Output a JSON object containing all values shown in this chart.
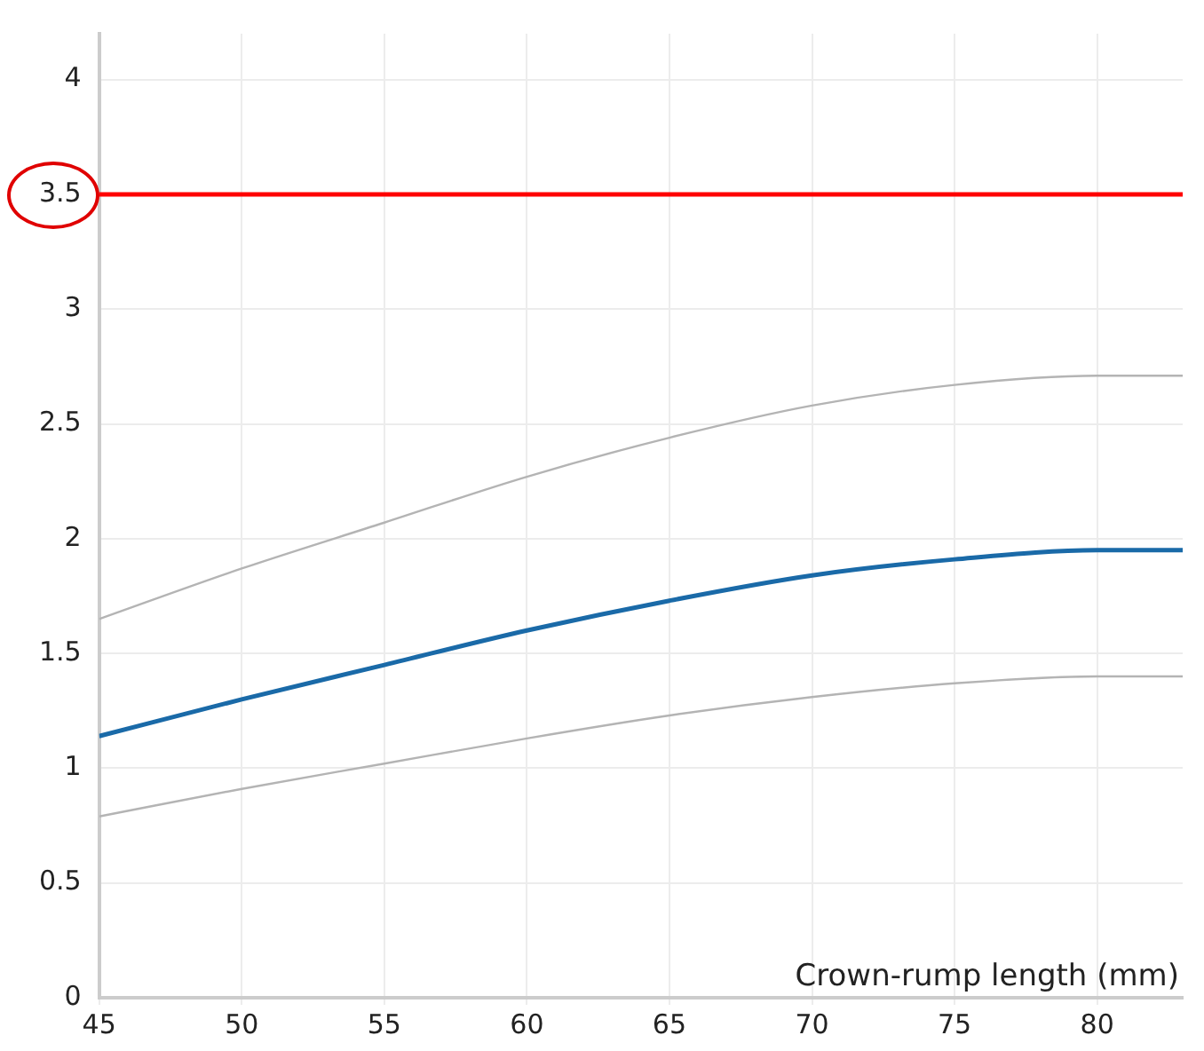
{
  "chart_data": {
    "type": "line",
    "xlabel": "Crown-rump length (mm)",
    "x": [
      45,
      50,
      55,
      60,
      65,
      70,
      75,
      80,
      83
    ],
    "series": [
      {
        "color": "#b4b4b4",
        "values": [
          1.65,
          1.87,
          2.07,
          2.27,
          2.44,
          2.58,
          2.67,
          2.71,
          2.71
        ]
      },
      {
        "color": "#1a6aa8",
        "values": [
          1.14,
          1.3,
          1.45,
          1.6,
          1.73,
          1.84,
          1.91,
          1.95,
          1.95
        ]
      },
      {
        "color": "#b4b4b4",
        "values": [
          0.79,
          0.91,
          1.02,
          1.13,
          1.23,
          1.31,
          1.37,
          1.4,
          1.4
        ]
      }
    ],
    "ref_lines": [
      {
        "axis": "y",
        "value": 3.5,
        "color": "#ff0000"
      }
    ],
    "xlim": [
      45,
      83
    ],
    "xticks": [
      45,
      50,
      55,
      60,
      65,
      70,
      75,
      80
    ],
    "ylim": [
      0,
      4.2
    ],
    "yticks": [
      0,
      0.5,
      1,
      1.5,
      2,
      2.5,
      3,
      3.5,
      4
    ],
    "grid": true,
    "legend": false,
    "marker": "none",
    "line_style": "solid"
  }
}
